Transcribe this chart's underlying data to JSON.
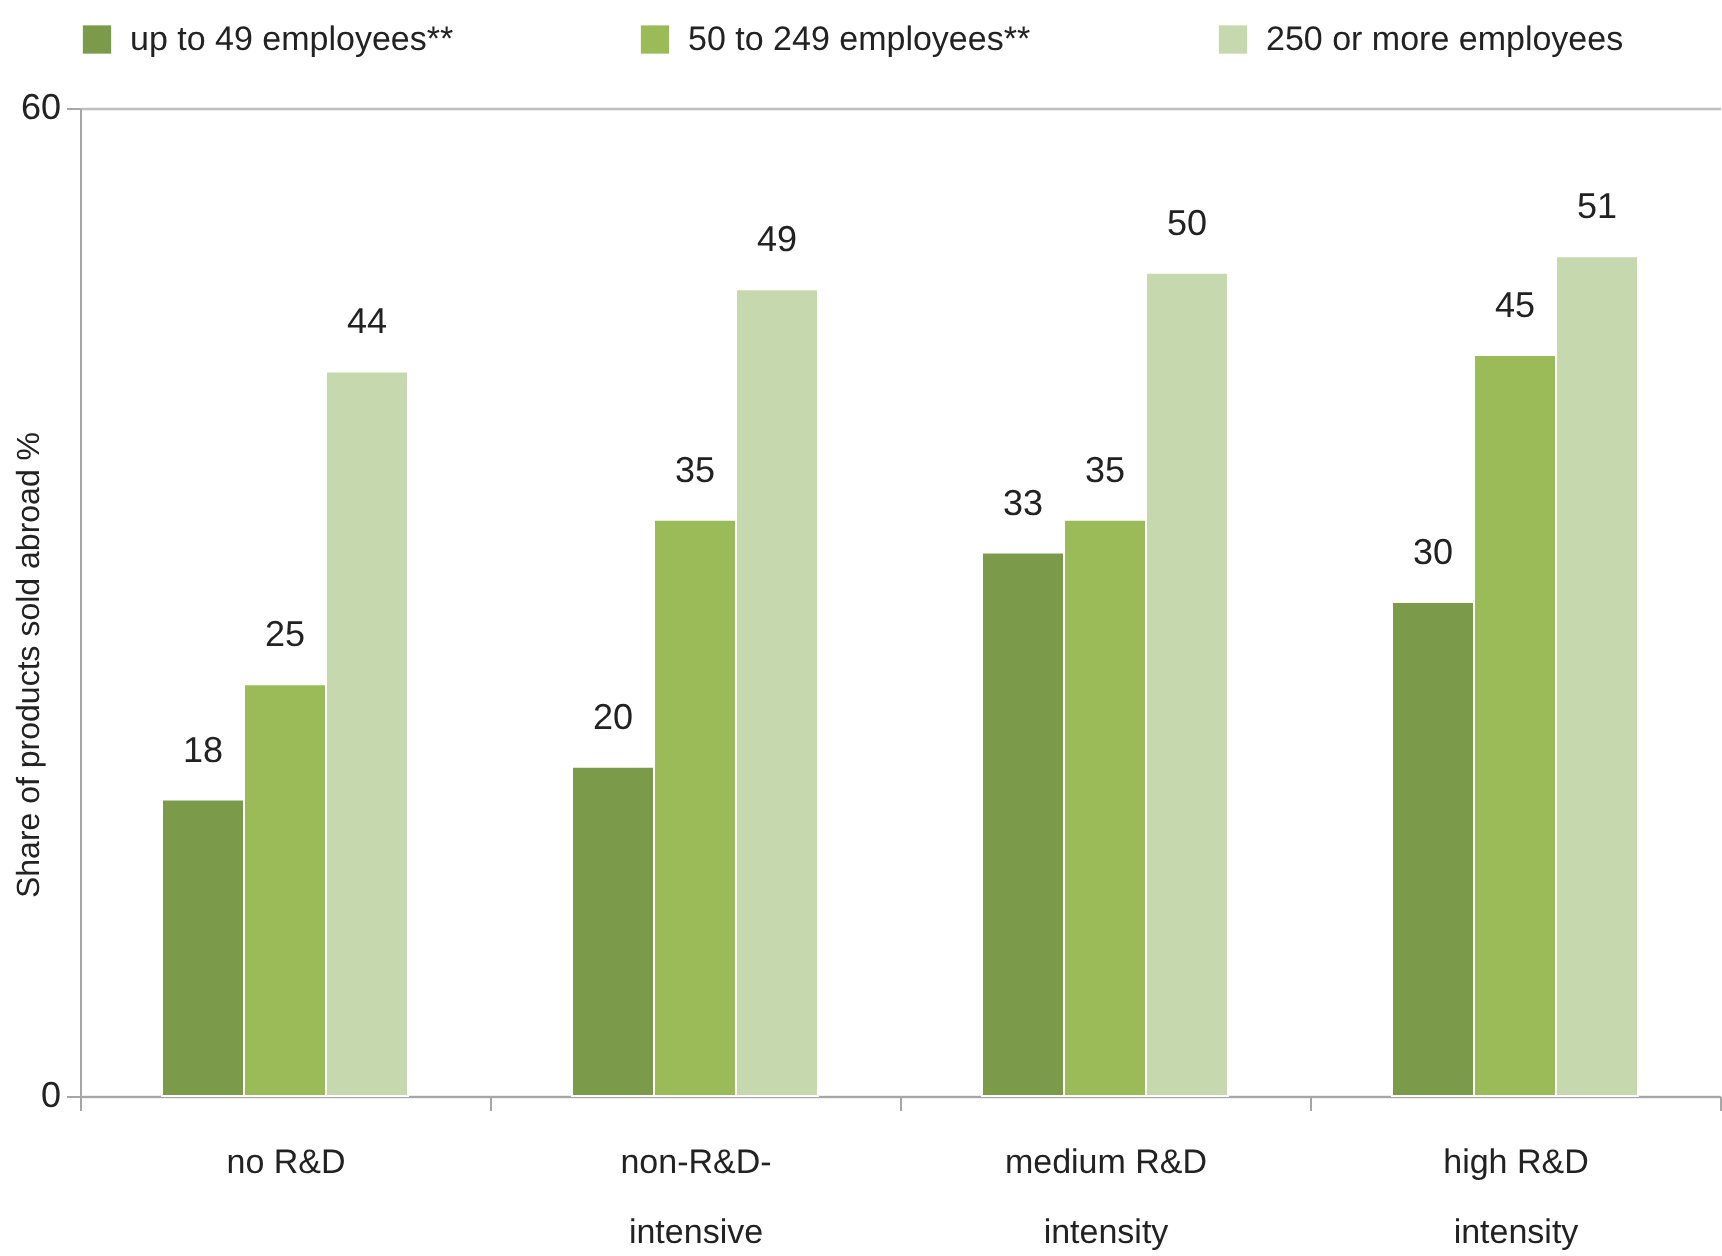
{
  "chart_data": {
    "type": "bar",
    "ylabel": "Share of products sold abroad %",
    "categories": [
      "no R&D",
      "non-R&D-\nintensive",
      "medium R&D\nintensity",
      "high R&D\nintensity"
    ],
    "series": [
      {
        "name": "up to 49 employees**",
        "color": "#7b9a4a",
        "values": [
          18,
          20,
          33,
          30
        ]
      },
      {
        "name": "50 to 249 employees**",
        "color": "#9bbb59",
        "values": [
          25,
          35,
          35,
          45
        ]
      },
      {
        "name": "250 or more employees",
        "color": "#c6d8ad",
        "values": [
          44,
          49,
          50,
          51
        ]
      }
    ],
    "ylim": [
      0,
      60
    ],
    "yticks": [
      0,
      60
    ],
    "grid": "y",
    "legend": "top",
    "data_labels": true
  }
}
